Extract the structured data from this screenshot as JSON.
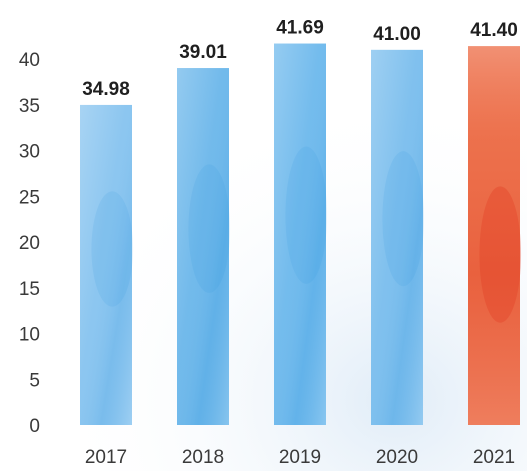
{
  "chart_data": {
    "type": "bar",
    "categories": [
      "2017",
      "2018",
      "2019",
      "2020",
      "2021"
    ],
    "values": [
      34.98,
      39.01,
      41.69,
      41.0,
      41.4
    ],
    "value_labels": [
      "34.98",
      "39.01",
      "41.69",
      "41.00",
      "41.40"
    ],
    "bar_colors": [
      "#86c3ef",
      "#6ab6ea",
      "#6cb8ec",
      "#79bded",
      "#ec6a45"
    ],
    "y_ticks": [
      0,
      5,
      10,
      15,
      20,
      25,
      30,
      35,
      40
    ],
    "ylim": [
      0,
      40
    ],
    "grid": false,
    "title": "",
    "xlabel": "",
    "ylabel": ""
  }
}
